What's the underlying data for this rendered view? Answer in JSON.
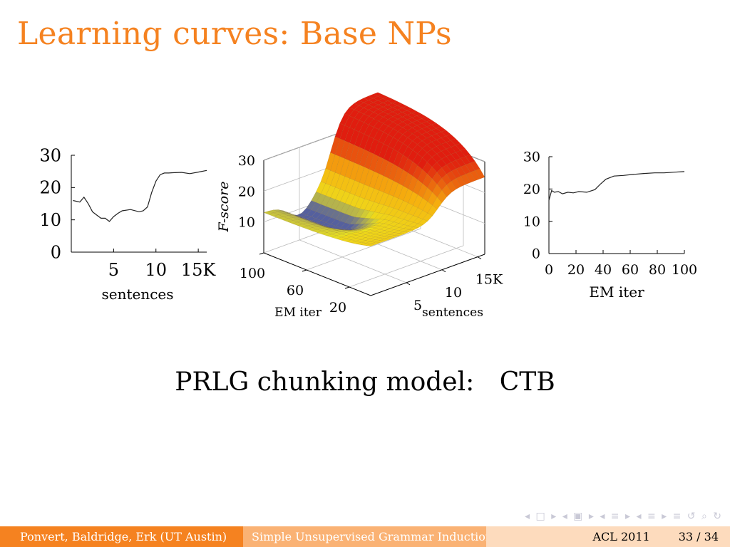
{
  "slide": {
    "title": "Learning curves: Base NPs",
    "caption_left": "PRLG chunking model:",
    "caption_right": "CTB"
  },
  "footer": {
    "authors": "Ponvert, Baldridge, Erk  (UT Austin)",
    "talk_title": "Simple Unsupervised Grammar Induction",
    "venue": "ACL 2011",
    "page": "33 / 34"
  },
  "colors": {
    "accent": "#f58220",
    "footer_mid": "#fab274",
    "footer_light": "#fddbbd",
    "surface_high": "#e01d0f",
    "surface_mid": "#f6b10e",
    "surface_low": "#ece31e",
    "surface_trough": "#55609e"
  },
  "chart_data": [
    {
      "type": "line",
      "x": [
        0.2,
        1,
        1.5,
        2,
        2.5,
        3,
        3.5,
        4,
        4.5,
        5,
        5.5,
        6,
        7,
        8,
        8.5,
        9,
        9.5,
        10,
        10.5,
        11,
        11.5,
        12,
        13,
        14,
        15,
        16
      ],
      "y": [
        16,
        15.5,
        17,
        15,
        12.5,
        11.5,
        10.5,
        10.5,
        9.5,
        11,
        12,
        12.8,
        13.2,
        12.5,
        12.8,
        14,
        18.5,
        22,
        24,
        24.5,
        24.5,
        24.6,
        24.7,
        24.3,
        24.8,
        25.3
      ],
      "xlabel": "sentences",
      "ylabel": "",
      "xticks": [
        "5",
        "10",
        "15K"
      ],
      "xtick_values": [
        5,
        10,
        15
      ],
      "yticks": [
        "0",
        "10",
        "20",
        "30"
      ],
      "ytick_values": [
        0,
        10,
        20,
        30
      ],
      "xlim": [
        0,
        16
      ],
      "ylim": [
        0,
        30
      ]
    },
    {
      "type": "area",
      "subtype": "3d-surface",
      "zlabel": "F-score",
      "xlabel": "EM iter",
      "ylabel": "sentences",
      "em_ticks": [
        "100",
        "60",
        "20"
      ],
      "em_tick_values": [
        100,
        60,
        20
      ],
      "sentence_ticks": [
        "5",
        "10",
        "15K"
      ],
      "sentence_tick_values": [
        5,
        10,
        15
      ],
      "zticks": [
        "10",
        "20",
        "30"
      ],
      "ztick_values": [
        10,
        20,
        30
      ],
      "em_range": [
        0,
        100
      ],
      "sentences_range": [
        0,
        16
      ],
      "zlim": [
        0,
        30
      ]
    },
    {
      "type": "line",
      "x": [
        0,
        2,
        4,
        7,
        10,
        14,
        18,
        22,
        28,
        34,
        38,
        42,
        48,
        55,
        62,
        70,
        78,
        85,
        92,
        100
      ],
      "y": [
        16.5,
        19.5,
        19,
        19.2,
        18.5,
        19,
        18.8,
        19.2,
        19,
        19.8,
        21.5,
        23,
        24,
        24.2,
        24.5,
        24.8,
        25,
        25,
        25.2,
        25.4
      ],
      "xlabel": "EM iter",
      "ylabel": "",
      "xticks": [
        "0",
        "20",
        "40",
        "60",
        "80",
        "100"
      ],
      "xtick_values": [
        0,
        20,
        40,
        60,
        80,
        100
      ],
      "yticks": [
        "0",
        "10",
        "20",
        "30"
      ],
      "ytick_values": [
        0,
        10,
        20,
        30
      ],
      "xlim": [
        0,
        100
      ],
      "ylim": [
        0,
        30
      ]
    }
  ]
}
